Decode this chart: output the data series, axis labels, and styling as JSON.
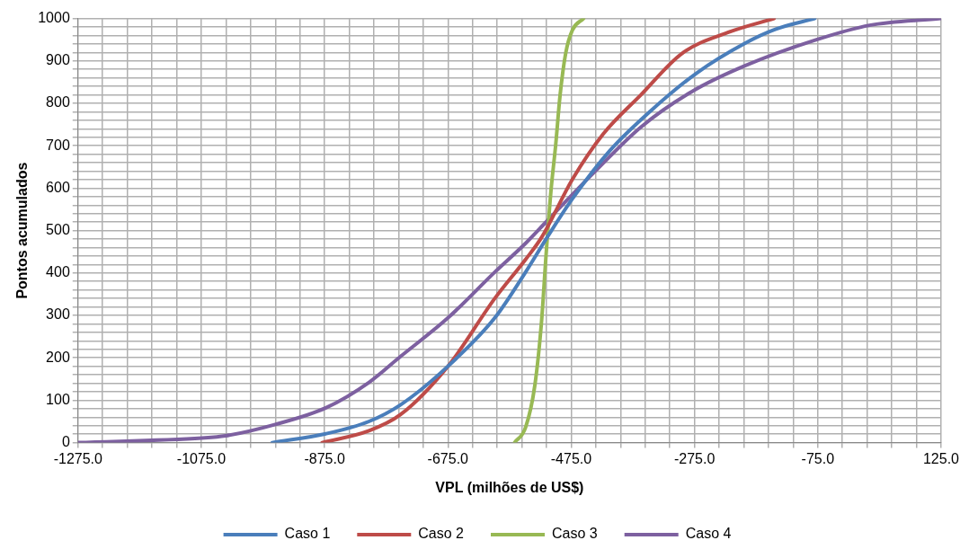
{
  "chart_data": {
    "type": "line",
    "xlabel": "VPL (milhões de US$)",
    "ylabel": "Pontos acumulados",
    "xlim": [
      -1275,
      125
    ],
    "ylim": [
      0,
      1000
    ],
    "xticks": [
      {
        "value": -1275,
        "label": "-1275.0"
      },
      {
        "value": -1235,
        "label": null
      },
      {
        "value": -1195,
        "label": null
      },
      {
        "value": -1155,
        "label": null
      },
      {
        "value": -1115,
        "label": null
      },
      {
        "value": -1075,
        "label": "-1075.0"
      },
      {
        "value": -1035,
        "label": null
      },
      {
        "value": -995,
        "label": null
      },
      {
        "value": -955,
        "label": null
      },
      {
        "value": -915,
        "label": null
      },
      {
        "value": -875,
        "label": "-875.0"
      },
      {
        "value": -835,
        "label": null
      },
      {
        "value": -795,
        "label": null
      },
      {
        "value": -755,
        "label": null
      },
      {
        "value": -715,
        "label": null
      },
      {
        "value": -675,
        "label": "-675.0"
      },
      {
        "value": -635,
        "label": null
      },
      {
        "value": -595,
        "label": null
      },
      {
        "value": -555,
        "label": null
      },
      {
        "value": -515,
        "label": null
      },
      {
        "value": -475,
        "label": "-475.0"
      },
      {
        "value": -435,
        "label": null
      },
      {
        "value": -395,
        "label": null
      },
      {
        "value": -355,
        "label": null
      },
      {
        "value": -315,
        "label": null
      },
      {
        "value": -275,
        "label": "-275.0"
      },
      {
        "value": -235,
        "label": null
      },
      {
        "value": -195,
        "label": null
      },
      {
        "value": -155,
        "label": null
      },
      {
        "value": -115,
        "label": null
      },
      {
        "value": -75,
        "label": "-75.0"
      },
      {
        "value": -35,
        "label": null
      },
      {
        "value": 5,
        "label": null
      },
      {
        "value": 45,
        "label": null
      },
      {
        "value": 85,
        "label": null
      },
      {
        "value": 125,
        "label": "125.0"
      }
    ],
    "yticks": [
      0,
      {
        "value": 20,
        "label": null
      },
      {
        "value": 40,
        "label": null
      },
      {
        "value": 60,
        "label": null
      },
      {
        "value": 80,
        "label": null
      },
      100,
      {
        "value": 120,
        "label": null
      },
      {
        "value": 140,
        "label": null
      },
      {
        "value": 160,
        "label": null
      },
      {
        "value": 180,
        "label": null
      },
      200,
      {
        "value": 220,
        "label": null
      },
      {
        "value": 240,
        "label": null
      },
      {
        "value": 260,
        "label": null
      },
      {
        "value": 280,
        "label": null
      },
      300,
      {
        "value": 320,
        "label": null
      },
      {
        "value": 340,
        "label": null
      },
      {
        "value": 360,
        "label": null
      },
      {
        "value": 380,
        "label": null
      },
      400,
      {
        "value": 420,
        "label": null
      },
      {
        "value": 440,
        "label": null
      },
      {
        "value": 460,
        "label": null
      },
      {
        "value": 480,
        "label": null
      },
      500,
      {
        "value": 520,
        "label": null
      },
      {
        "value": 540,
        "label": null
      },
      {
        "value": 560,
        "label": null
      },
      {
        "value": 580,
        "label": null
      },
      600,
      {
        "value": 620,
        "label": null
      },
      {
        "value": 640,
        "label": null
      },
      {
        "value": 660,
        "label": null
      },
      {
        "value": 680,
        "label": null
      },
      700,
      {
        "value": 720,
        "label": null
      },
      {
        "value": 740,
        "label": null
      },
      {
        "value": 760,
        "label": null
      },
      {
        "value": 780,
        "label": null
      },
      800,
      {
        "value": 820,
        "label": null
      },
      {
        "value": 840,
        "label": null
      },
      {
        "value": 860,
        "label": null
      },
      {
        "value": 880,
        "label": null
      },
      900,
      {
        "value": 920,
        "label": null
      },
      {
        "value": 940,
        "label": null
      },
      {
        "value": 960,
        "label": null
      },
      {
        "value": 980,
        "label": null
      },
      1000
    ],
    "grid": true,
    "legend": "bottom",
    "marker": "none",
    "line_style": "solid",
    "series": [
      {
        "name": "Caso 1",
        "color": "#4a7ebb",
        "x": [
          -960,
          -873,
          -803,
          -752,
          -675,
          -599,
          -549,
          -514,
          -473,
          -412,
          -347,
          -271,
          -194,
          -143,
          -80
        ],
        "values": [
          0,
          21,
          50,
          89,
          180,
          294,
          402,
          484,
          575,
          689,
          781,
          872,
          941,
          975,
          1000
        ]
      },
      {
        "name": "Caso 2",
        "color": "#be4b48",
        "x": [
          -879,
          -803,
          -752,
          -675,
          -599,
          -549,
          -523,
          -473,
          -423,
          -362,
          -295,
          -219,
          -146
        ],
        "values": [
          0,
          28,
          66,
          180,
          340,
          432,
          484,
          621,
          728,
          820,
          918,
          968,
          1000
        ]
      },
      {
        "name": "Caso 3",
        "color": "#98b954",
        "x": [
          -567,
          -549,
          -534,
          -523,
          -516,
          -508,
          -500,
          -493,
          -484,
          -473,
          -455
        ],
        "values": [
          0,
          36,
          135,
          288,
          438,
          591,
          705,
          820,
          918,
          973,
          1000
        ]
      },
      {
        "name": "Caso 4",
        "color": "#7d60a0",
        "x": [
          -1275,
          -1074,
          -1036,
          -955,
          -873,
          -803,
          -752,
          -675,
          -599,
          -549,
          -514,
          -438,
          -362,
          -280,
          -194,
          -77,
          9,
          125
        ],
        "values": [
          0,
          11,
          16,
          43,
          82,
          142,
          203,
          294,
          402,
          470,
          523,
          637,
          744,
          827,
          888,
          950,
          984,
          1000
        ]
      }
    ]
  }
}
